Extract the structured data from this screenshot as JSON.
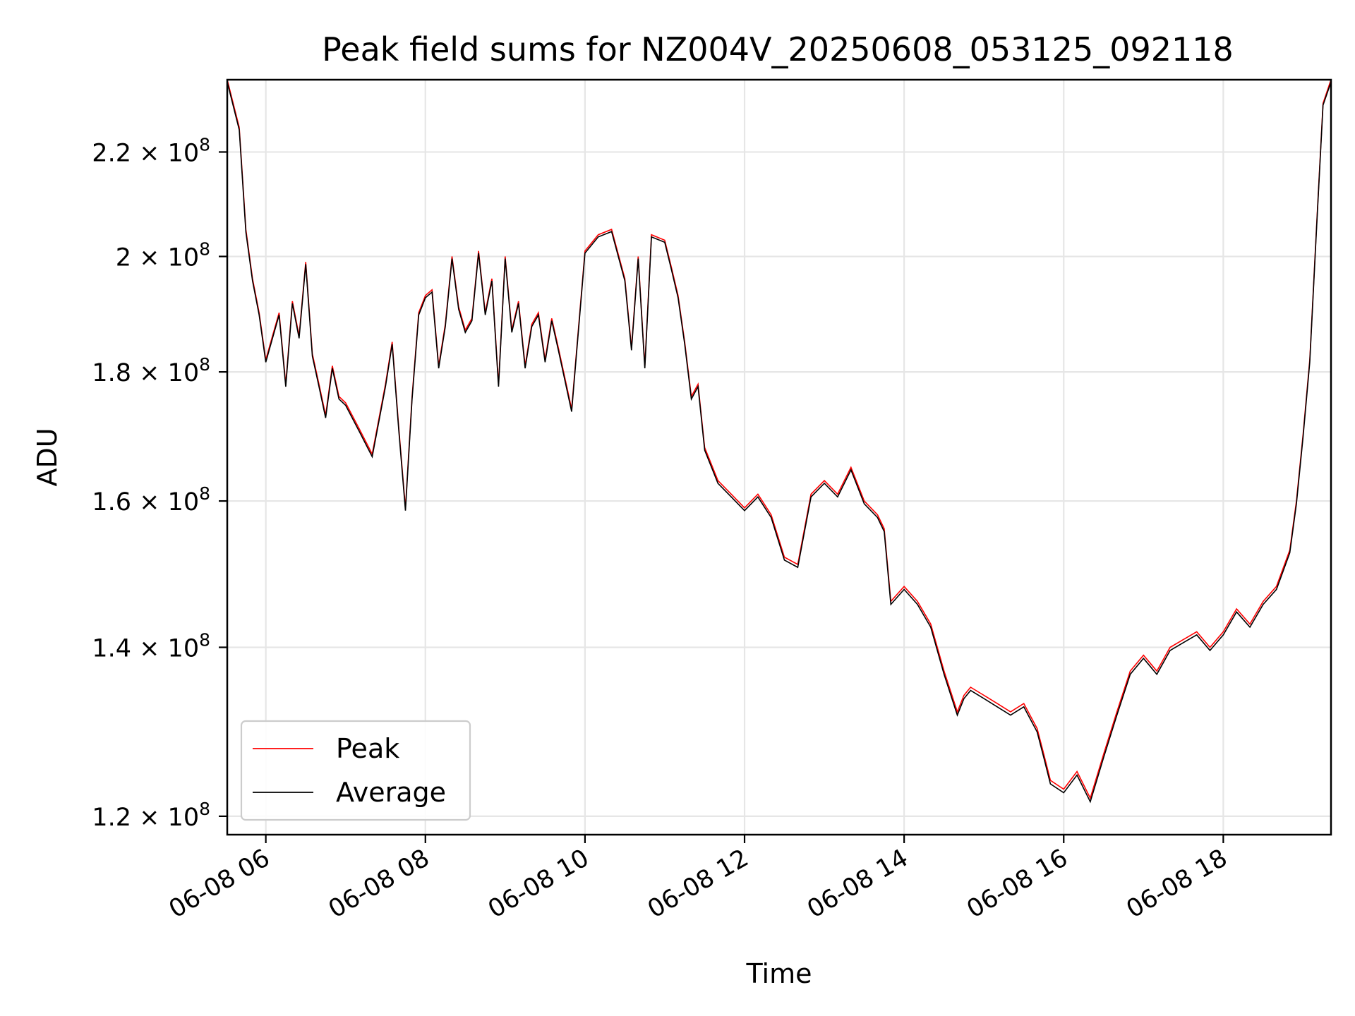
{
  "chart_data": {
    "type": "line",
    "title": "Peak field sums for NZ004V_20250608_053125_092118",
    "xlabel": "Time",
    "ylabel": "ADU",
    "y_scale": "log",
    "grid": true,
    "legend_position": "lower-left",
    "xlim": [
      "2025-06-08 05:31",
      "2025-06-08 19:21"
    ],
    "ylim": [
      118000000,
      235000000
    ],
    "x_ticks": [
      {
        "value": "2025-06-08 06:00",
        "label": "06-08 06"
      },
      {
        "value": "2025-06-08 08:00",
        "label": "06-08 08"
      },
      {
        "value": "2025-06-08 10:00",
        "label": "06-08 10"
      },
      {
        "value": "2025-06-08 12:00",
        "label": "06-08 12"
      },
      {
        "value": "2025-06-08 14:00",
        "label": "06-08 14"
      },
      {
        "value": "2025-06-08 16:00",
        "label": "06-08 16"
      },
      {
        "value": "2025-06-08 18:00",
        "label": "06-08 18"
      }
    ],
    "y_ticks": [
      {
        "value": 120000000,
        "mantissa": "1.2",
        "base": "10",
        "exp": "8"
      },
      {
        "value": 140000000,
        "mantissa": "1.4",
        "base": "10",
        "exp": "8"
      },
      {
        "value": 160000000,
        "mantissa": "1.6",
        "base": "10",
        "exp": "8"
      },
      {
        "value": 180000000,
        "mantissa": "1.8",
        "base": "10",
        "exp": "8"
      },
      {
        "value": 200000000,
        "mantissa": "2",
        "base": "10",
        "exp": "8"
      },
      {
        "value": 220000000,
        "mantissa": "2.2",
        "base": "10",
        "exp": "8"
      }
    ],
    "series": [
      {
        "name": "Peak",
        "color": "#ff0000",
        "x": [
          "05:31",
          "05:40",
          "05:45",
          "05:50",
          "05:55",
          "06:00",
          "06:05",
          "06:10",
          "06:15",
          "06:20",
          "06:25",
          "06:30",
          "06:35",
          "06:40",
          "06:45",
          "06:50",
          "06:55",
          "07:00",
          "07:10",
          "07:20",
          "07:30",
          "07:35",
          "07:40",
          "07:45",
          "07:50",
          "07:55",
          "08:00",
          "08:05",
          "08:10",
          "08:15",
          "08:20",
          "08:25",
          "08:30",
          "08:35",
          "08:40",
          "08:45",
          "08:50",
          "08:55",
          "09:00",
          "09:05",
          "09:10",
          "09:15",
          "09:20",
          "09:25",
          "09:30",
          "09:35",
          "09:40",
          "09:50",
          "10:00",
          "10:10",
          "10:20",
          "10:30",
          "10:35",
          "10:40",
          "10:45",
          "10:50",
          "11:00",
          "11:05",
          "11:10",
          "11:15",
          "11:20",
          "11:25",
          "11:30",
          "11:40",
          "11:50",
          "12:00",
          "12:10",
          "12:20",
          "12:30",
          "12:40",
          "12:50",
          "13:00",
          "13:10",
          "13:20",
          "13:30",
          "13:40",
          "13:45",
          "13:50",
          "14:00",
          "14:10",
          "14:20",
          "14:30",
          "14:40",
          "14:45",
          "14:50",
          "15:00",
          "15:10",
          "15:20",
          "15:30",
          "15:40",
          "15:45",
          "15:50",
          "16:00",
          "16:10",
          "16:20",
          "16:30",
          "16:40",
          "16:50",
          "17:00",
          "17:05",
          "17:10",
          "17:20",
          "17:30",
          "17:40",
          "17:50",
          "18:00",
          "18:10",
          "18:20",
          "18:30",
          "18:40",
          "18:50",
          "18:55",
          "19:00",
          "19:05",
          "19:10",
          "19:15",
          "19:21"
        ],
        "values": [
          235000000,
          225000000,
          205000000,
          196000000,
          190000000,
          182000000,
          186000000,
          190000000,
          178000000,
          192000000,
          186000000,
          199000000,
          183000000,
          178000000,
          173000000,
          181000000,
          176000000,
          175000000,
          171000000,
          167000000,
          178000000,
          185000000,
          171000000,
          159000000,
          176000000,
          190000000,
          193000000,
          194000000,
          181000000,
          188000000,
          200000000,
          191000000,
          187000000,
          189000000,
          201000000,
          190000000,
          196000000,
          178000000,
          200000000,
          187000000,
          192000000,
          181000000,
          188000000,
          190000000,
          182000000,
          189000000,
          184000000,
          174000000,
          201000000,
          204000000,
          205000000,
          196000000,
          184000000,
          200000000,
          181000000,
          204000000,
          203000000,
          198000000,
          193000000,
          185000000,
          176000000,
          178000000,
          168000000,
          163000000,
          161000000,
          159000000,
          161000000,
          158000000,
          152000000,
          151000000,
          161000000,
          163000000,
          161000000,
          165000000,
          160000000,
          158000000,
          156000000,
          146000000,
          148000000,
          146000000,
          143000000,
          137000000,
          132000000,
          134000000,
          135000000,
          134000000,
          133000000,
          132000000,
          133000000,
          130000000,
          127000000,
          124000000,
          123000000,
          125000000,
          122000000,
          127000000,
          132000000,
          137000000,
          139000000,
          138000000,
          137000000,
          140000000,
          141000000,
          142000000,
          140000000,
          142000000,
          145000000,
          143000000,
          146000000,
          148000000,
          153000000,
          160000000,
          170000000,
          182000000,
          205000000,
          230000000,
          235000000
        ]
      },
      {
        "name": "Average",
        "color": "#000000",
        "x": [
          "05:31",
          "05:40",
          "05:45",
          "05:50",
          "05:55",
          "06:00",
          "06:05",
          "06:10",
          "06:15",
          "06:20",
          "06:25",
          "06:30",
          "06:35",
          "06:40",
          "06:45",
          "06:50",
          "06:55",
          "07:00",
          "07:10",
          "07:20",
          "07:30",
          "07:35",
          "07:40",
          "07:45",
          "07:50",
          "07:55",
          "08:00",
          "08:05",
          "08:10",
          "08:15",
          "08:20",
          "08:25",
          "08:30",
          "08:35",
          "08:40",
          "08:45",
          "08:50",
          "08:55",
          "09:00",
          "09:05",
          "09:10",
          "09:15",
          "09:20",
          "09:25",
          "09:30",
          "09:35",
          "09:40",
          "09:50",
          "10:00",
          "10:10",
          "10:20",
          "10:30",
          "10:35",
          "10:40",
          "10:45",
          "10:50",
          "11:00",
          "11:05",
          "11:10",
          "11:15",
          "11:20",
          "11:25",
          "11:30",
          "11:40",
          "11:50",
          "12:00",
          "12:10",
          "12:20",
          "12:30",
          "12:40",
          "12:50",
          "13:00",
          "13:10",
          "13:20",
          "13:30",
          "13:40",
          "13:45",
          "13:50",
          "14:00",
          "14:10",
          "14:20",
          "14:30",
          "14:40",
          "14:45",
          "14:50",
          "15:00",
          "15:10",
          "15:20",
          "15:30",
          "15:40",
          "15:45",
          "15:50",
          "16:00",
          "16:10",
          "16:20",
          "16:30",
          "16:40",
          "16:50",
          "17:00",
          "17:05",
          "17:10",
          "17:20",
          "17:30",
          "17:40",
          "17:50",
          "18:00",
          "18:10",
          "18:20",
          "18:30",
          "18:40",
          "18:50",
          "18:55",
          "19:00",
          "19:05",
          "19:10",
          "19:15",
          "19:21"
        ],
        "values": [
          234500000,
          224500000,
          204500000,
          195600000,
          189600000,
          181600000,
          185600000,
          189600000,
          177600000,
          191600000,
          185600000,
          198600000,
          182600000,
          177600000,
          172600000,
          180600000,
          175600000,
          174600000,
          170600000,
          166600000,
          177600000,
          184600000,
          170600000,
          158600000,
          175600000,
          189600000,
          192600000,
          193600000,
          180600000,
          187600000,
          199600000,
          190600000,
          186600000,
          188600000,
          200600000,
          189600000,
          195600000,
          177600000,
          199600000,
          186600000,
          191600000,
          180600000,
          187600000,
          189600000,
          181600000,
          188600000,
          183600000,
          173600000,
          200600000,
          203600000,
          204600000,
          195600000,
          183600000,
          199600000,
          180600000,
          203600000,
          202600000,
          197600000,
          192600000,
          184600000,
          175600000,
          177600000,
          167600000,
          162600000,
          160600000,
          158600000,
          160600000,
          157600000,
          151600000,
          150600000,
          160600000,
          162600000,
          160600000,
          164600000,
          159600000,
          157600000,
          155600000,
          145600000,
          147600000,
          145600000,
          142600000,
          136600000,
          131600000,
          133600000,
          134600000,
          133600000,
          132600000,
          131600000,
          132600000,
          129600000,
          126600000,
          123600000,
          122600000,
          124600000,
          121600000,
          126600000,
          131600000,
          136600000,
          138600000,
          137600000,
          136600000,
          139600000,
          140600000,
          141600000,
          139600000,
          141600000,
          144600000,
          142600000,
          145600000,
          147600000,
          152600000,
          159600000,
          169600000,
          181600000,
          204600000,
          229600000,
          234500000
        ]
      }
    ]
  }
}
